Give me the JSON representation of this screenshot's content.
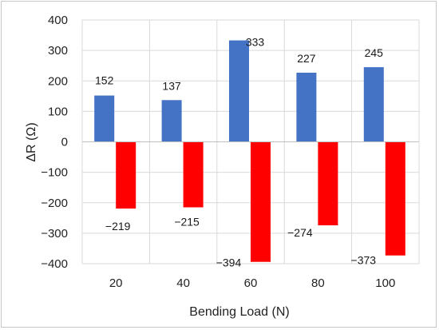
{
  "chart_data": {
    "type": "bar",
    "title": "",
    "xlabel": "Bending Load (N)",
    "ylabel": "ΔR (Ω)",
    "categories": [
      "20",
      "40",
      "60",
      "80",
      "100"
    ],
    "series": [
      {
        "values": [
          152,
          137,
          333,
          227,
          245
        ],
        "color": "#4472c4"
      },
      {
        "values": [
          -219,
          -215,
          -394,
          -274,
          -373
        ],
        "color": "#ff0000"
      }
    ],
    "data_labels": [
      [
        "152",
        "137",
        "333",
        "227",
        "245"
      ],
      [
        "−219",
        "−215",
        "−394",
        "−274",
        "−373"
      ]
    ],
    "ylim": [
      -400,
      400
    ],
    "yticks": [
      400,
      300,
      200,
      100,
      0,
      -100,
      -200,
      -300,
      -400
    ],
    "ytick_labels": [
      "400",
      "300",
      "200",
      "100",
      "0",
      "−100",
      "−200",
      "−300",
      "−400"
    ],
    "grid": true,
    "legend": "none"
  }
}
